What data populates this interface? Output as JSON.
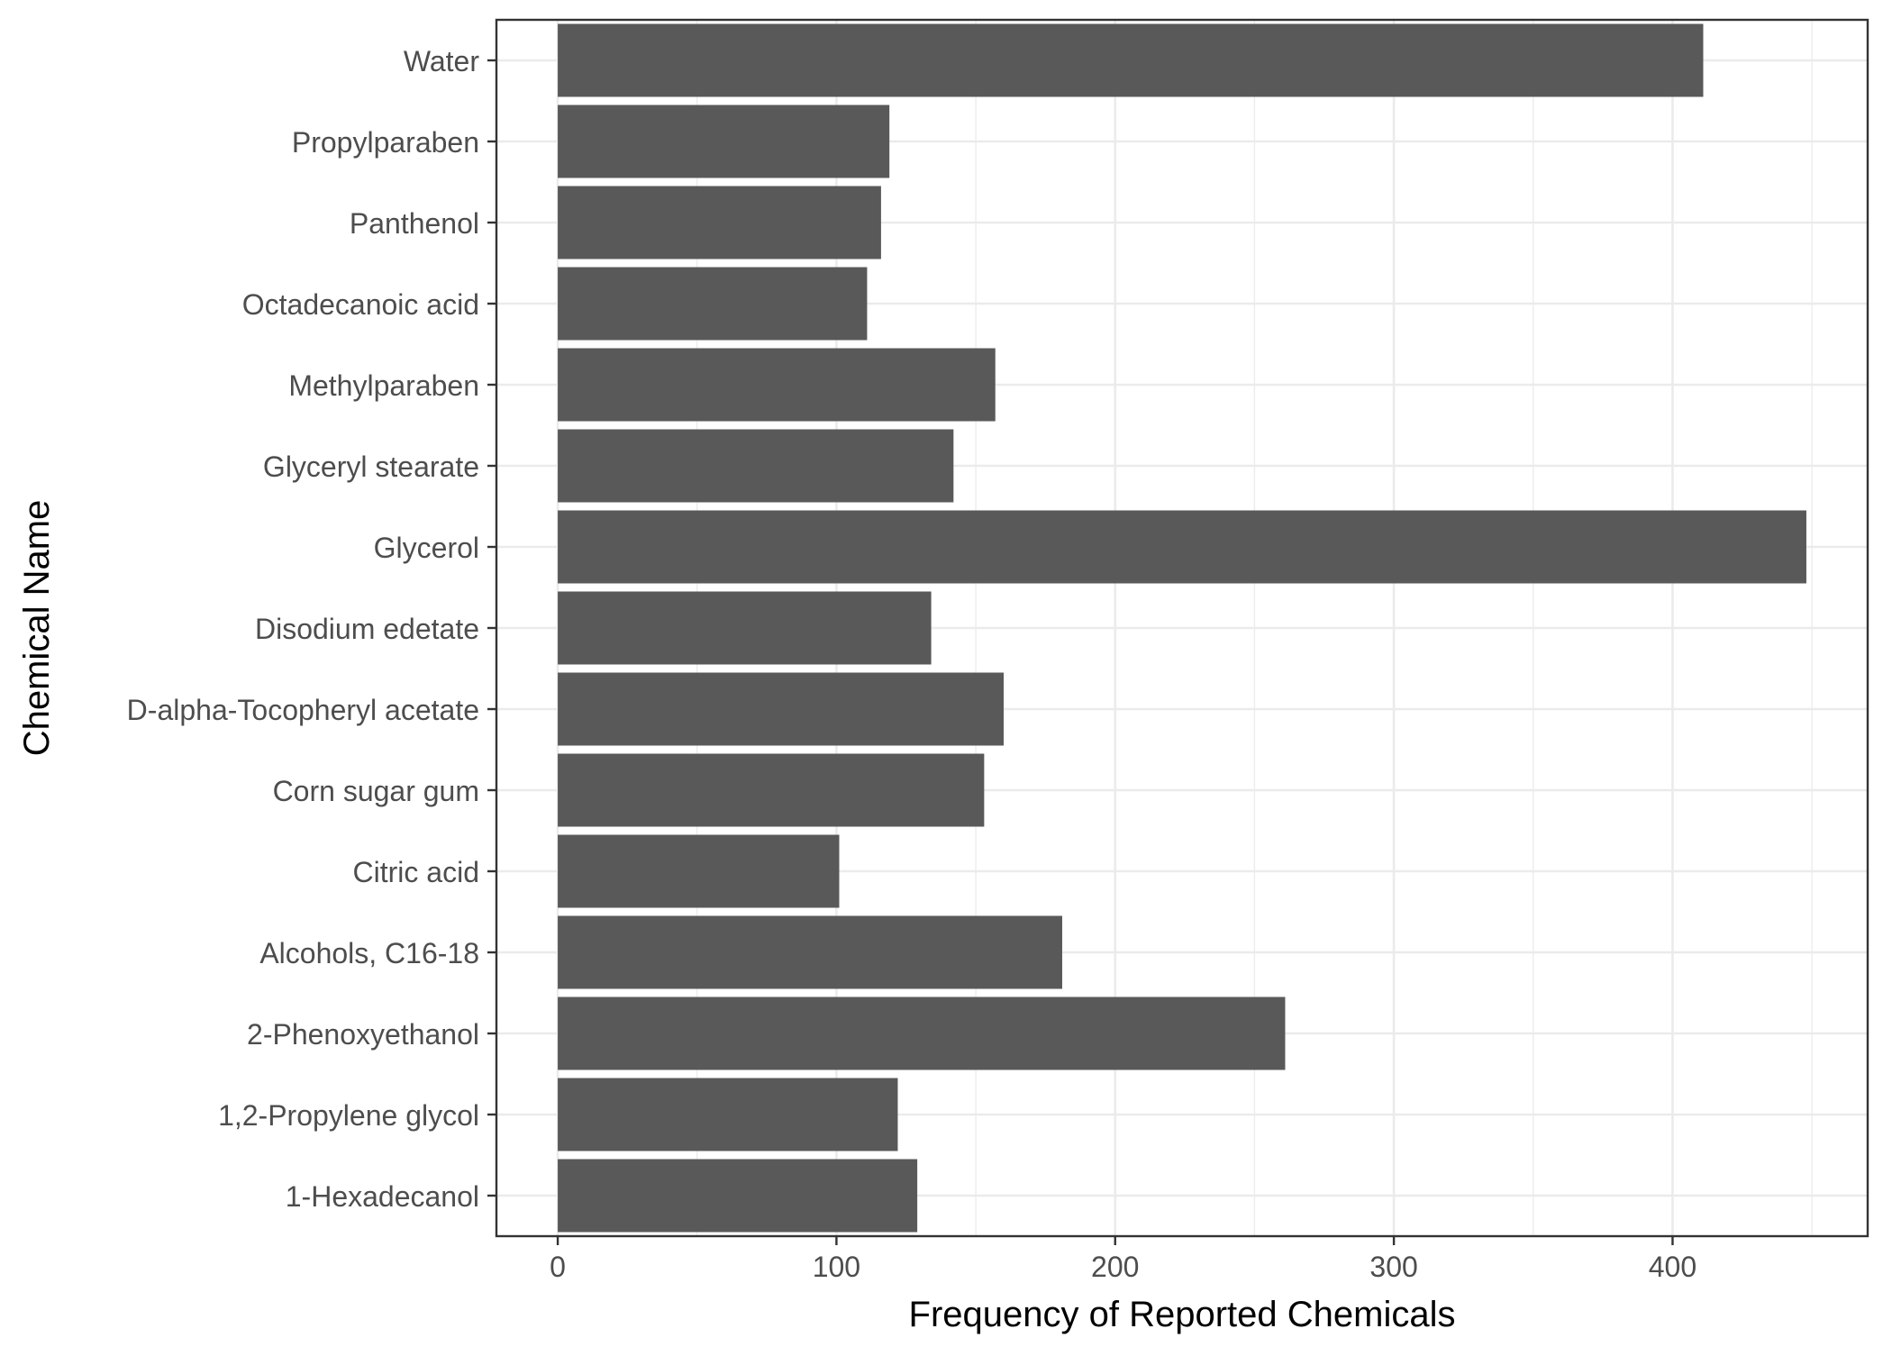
{
  "chart_data": {
    "type": "bar",
    "orientation": "horizontal",
    "title": "",
    "xlabel": "Frequency of Reported Chemicals",
    "ylabel": "Chemical Name",
    "xlim": [
      -22,
      470
    ],
    "x_ticks": [
      0,
      100,
      200,
      300,
      400
    ],
    "x_tick_labels": [
      "0",
      "100",
      "200",
      "300",
      "400"
    ],
    "grid": true,
    "legend": "none",
    "categories": [
      "Water",
      "Propylparaben",
      "Panthenol",
      "Octadecanoic acid",
      "Methylparaben",
      "Glyceryl stearate",
      "Glycerol",
      "Disodium edetate",
      "D-alpha-Tocopheryl acetate",
      "Corn sugar gum",
      "Citric acid",
      "Alcohols, C16-18",
      "2-Phenoxyethanol",
      "1,2-Propylene glycol",
      "1-Hexadecanol"
    ],
    "values": [
      411,
      119,
      116,
      111,
      157,
      142,
      448,
      134,
      160,
      153,
      101,
      181,
      261,
      122,
      129
    ],
    "colors": {
      "bar": "#595959",
      "grid": "#ebebeb",
      "panel_border": "#333333",
      "tick": "#333333",
      "tick_label": "#4d4d4d",
      "axis_title": "#000000"
    }
  }
}
